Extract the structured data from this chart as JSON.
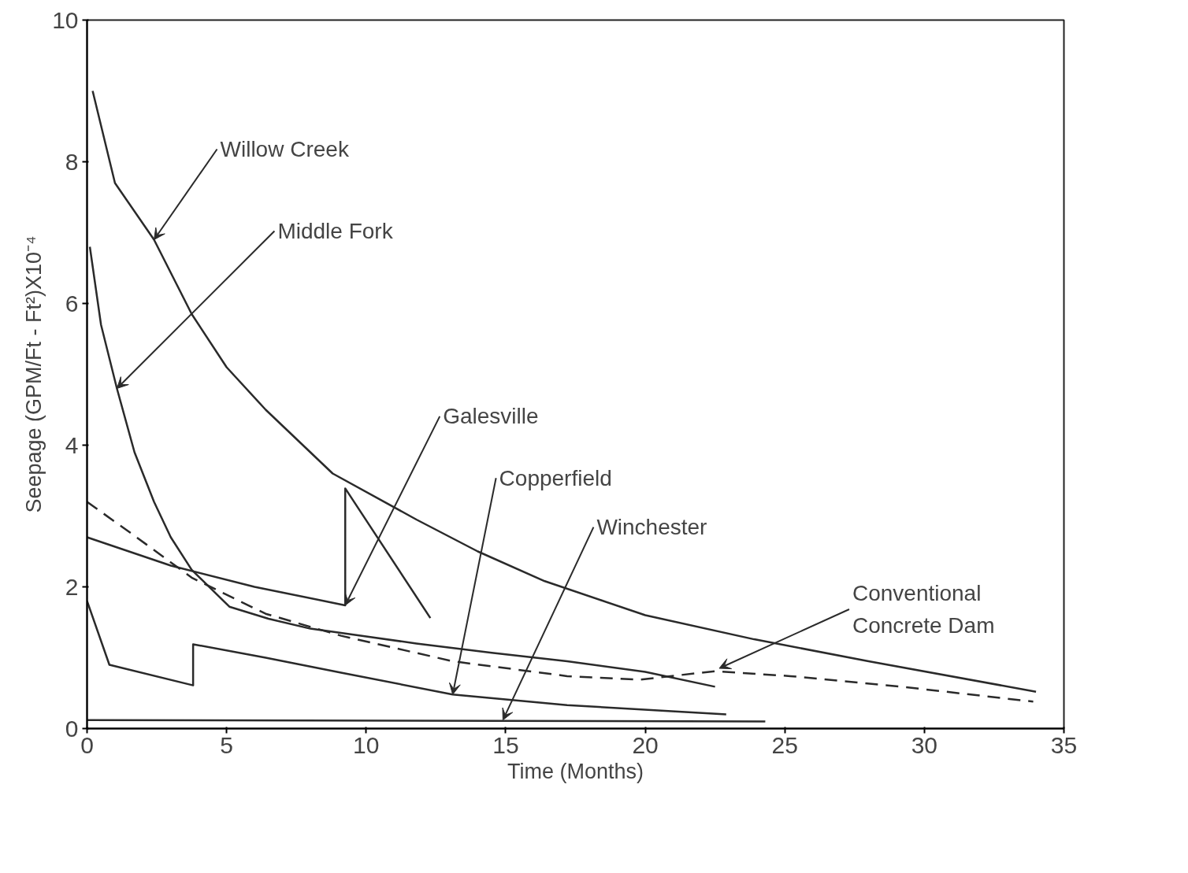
{
  "chart_data": {
    "type": "line",
    "xlabel": "Time (Months)",
    "ylabel": "Seepage (GPM/Ft - Ft²)X10⁻⁴",
    "xlim": [
      0,
      35
    ],
    "ylim": [
      0,
      10
    ],
    "xticks": [
      0,
      5,
      10,
      15,
      20,
      25,
      30,
      35
    ],
    "yticks": [
      0,
      2,
      4,
      6,
      8,
      10
    ],
    "grid": false,
    "series": [
      {
        "color": "#2a2a2a",
        "line_style": "solid",
        "x": [
          0.2,
          1.0,
          2.4,
          3.75,
          5.0,
          6.4,
          8.8,
          11.8,
          14.0,
          16.4,
          20.0,
          23.9,
          28.0,
          34.0
        ],
        "values": [
          9.0,
          7.7,
          6.9,
          5.85,
          5.1,
          4.5,
          3.6,
          2.95,
          2.5,
          2.08,
          1.6,
          1.26,
          0.95,
          0.52
        ]
      },
      {
        "color": "#2a2a2a",
        "line_style": "solid",
        "x": [
          0.1,
          0.5,
          1.07,
          1.7,
          2.4,
          3.0,
          3.75,
          5.1,
          6.5,
          8.0,
          10.0,
          11.8,
          14.5,
          17.2,
          20.0,
          22.5
        ],
        "values": [
          6.8,
          5.7,
          4.8,
          3.9,
          3.2,
          2.7,
          2.24,
          1.72,
          1.55,
          1.41,
          1.3,
          1.2,
          1.07,
          0.95,
          0.8,
          0.59
        ]
      },
      {
        "color": "#2a2a2a",
        "line_style": "solid",
        "x": [
          0,
          3.0,
          6.0,
          9.25,
          9.25,
          12.3
        ],
        "values": [
          2.7,
          2.3,
          2.0,
          1.74,
          3.39,
          1.56
        ]
      },
      {
        "color": "#2a2a2a",
        "line_style": "solid",
        "x": [
          0,
          0.8,
          3.8,
          3.8,
          6.4,
          9.1,
          13.1,
          17.2,
          22.9
        ],
        "values": [
          1.8,
          0.9,
          0.61,
          1.19,
          1.0,
          0.79,
          0.48,
          0.33,
          0.2
        ]
      },
      {
        "color": "#2a2a2a",
        "line_style": "solid",
        "x": [
          0,
          24.3
        ],
        "values": [
          0.12,
          0.1
        ]
      },
      {
        "color": "#2a2a2a",
        "line_style": "dashed",
        "x": [
          0,
          1.6,
          3.75,
          6.4,
          9.1,
          13.1,
          17.2,
          19.8,
          22.5,
          25.2,
          29.2,
          33.9
        ],
        "values": [
          3.2,
          2.75,
          2.13,
          1.62,
          1.31,
          0.95,
          0.74,
          0.69,
          0.81,
          0.74,
          0.59,
          0.38
        ]
      }
    ],
    "annotations": [
      {
        "text": "Willow Creek",
        "x": 2.4,
        "y": 6.9
      },
      {
        "text": "Middle Fork",
        "x": 1.07,
        "y": 4.8
      },
      {
        "text": "Galesville",
        "x": 9.25,
        "y": 1.74
      },
      {
        "text": "Copperfield",
        "x": 13.1,
        "y": 0.48
      },
      {
        "text": "Winchester",
        "x": 14.9,
        "y": 0.12
      },
      {
        "text": "Conventional\nConcrete Dam",
        "x": 22.65,
        "y": 0.85
      }
    ]
  }
}
